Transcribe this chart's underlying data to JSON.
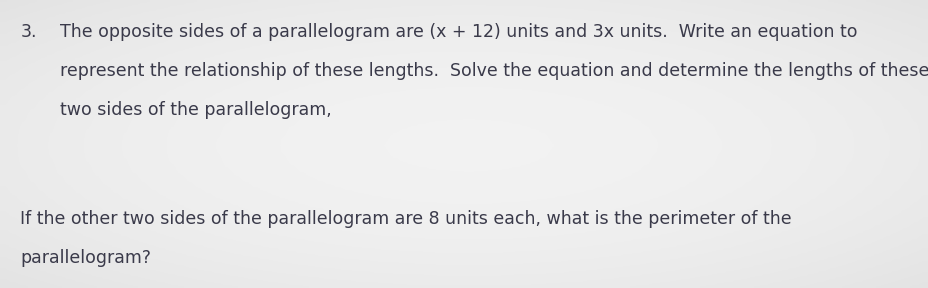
{
  "background_color": "#e8e8e8",
  "number": "3.",
  "line1": "The opposite sides of a parallelogram are (x + 12) units and 3x units.  Write an equation to",
  "line2": "represent the relationship of these lengths.  Solve the equation and determine the lengths of these",
  "line3": "two sides of the parallelogram,",
  "line4": "If the other two sides of the parallelogram are 8 units each, what is the perimeter of the",
  "line5": "parallelogram?",
  "text_color": "#3a3a4a",
  "font_size": 12.5,
  "fig_width": 9.29,
  "fig_height": 2.88,
  "dpi": 100
}
